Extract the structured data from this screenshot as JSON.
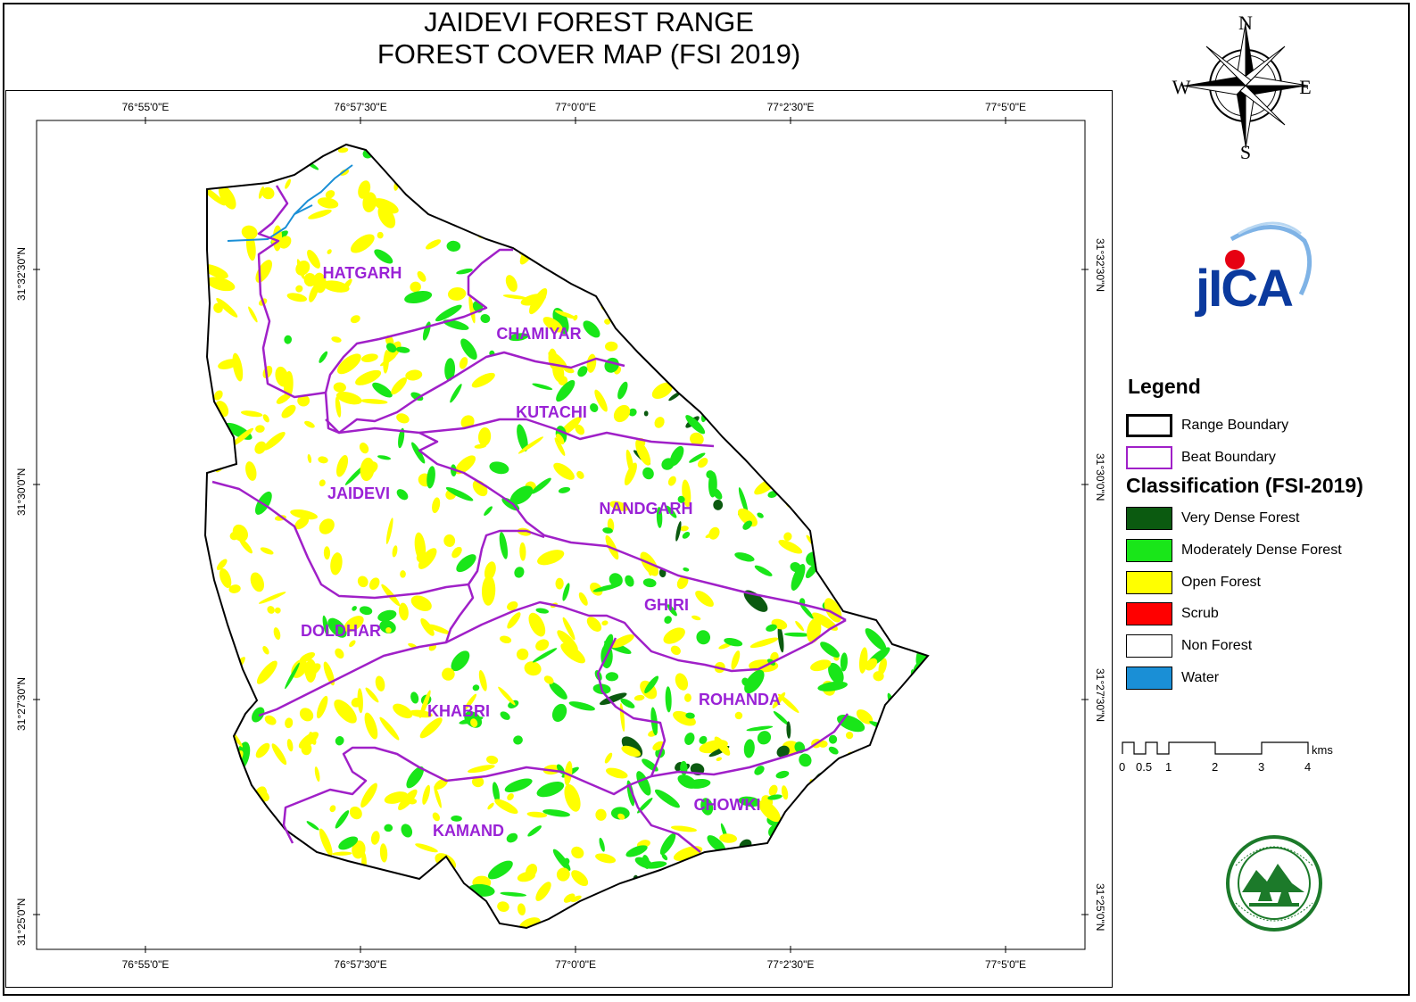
{
  "title": {
    "line1": "JAIDEVI FOREST RANGE",
    "line2": "FOREST COVER MAP (FSI 2019)"
  },
  "compass": {
    "n": "N",
    "s": "S",
    "e": "E",
    "w": "W"
  },
  "logos": {
    "jica": "jICA",
    "dept": "forest-department-emblem"
  },
  "coordinates": {
    "lon": [
      "76°55'0\"E",
      "76°57'30\"E",
      "77°0'0\"E",
      "77°2'30\"E",
      "77°5'0\"E"
    ],
    "lat": [
      "31°32'30\"N",
      "31°30'0\"N",
      "31°27'30\"N",
      "31°25'0\"N"
    ]
  },
  "beats": [
    "HATGARH",
    "CHAMIYAR",
    "KUTACHI",
    "JAIDEVI",
    "NANDGARH",
    "GHIRI",
    "DOLDHAR",
    "ROHANDA",
    "KHABRI",
    "CHOWKI",
    "KAMAND"
  ],
  "legend": {
    "title": "Legend",
    "boundaries": [
      {
        "label": "Range Boundary",
        "color": "#000000"
      },
      {
        "label": "Beat Boundary",
        "color": "#a020c8"
      }
    ],
    "classification_title": "Classification (FSI-2019)",
    "classes": [
      {
        "label": "Very Dense Forest",
        "color": "#0b5a10"
      },
      {
        "label": "Moderately Dense Forest",
        "color": "#19e619"
      },
      {
        "label": "Open Forest",
        "color": "#ffff00"
      },
      {
        "label": "Scrub",
        "color": "#ff0000"
      },
      {
        "label": "Non Forest",
        "color": "#ffffff"
      },
      {
        "label": "Water",
        "color": "#1a8fd6"
      }
    ]
  },
  "scale": {
    "ticks": [
      "0",
      "0.5",
      "1",
      "2",
      "3",
      "4"
    ],
    "unit": "kms"
  }
}
